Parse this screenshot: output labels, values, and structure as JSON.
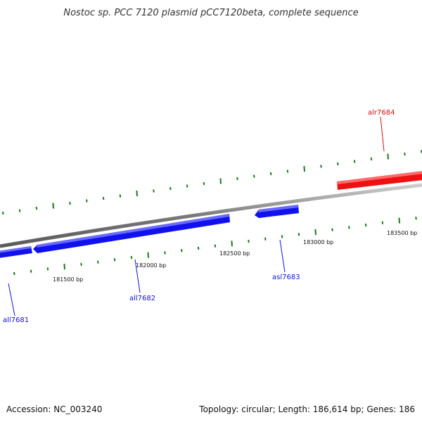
{
  "title": "Nostoc sp. PCC 7120 plasmid pCC7120beta, complete sequence",
  "footer": {
    "accession": "Accession: NC_003240",
    "summary": "Topology: circular; Length: 186,614 bp; Genes: 186"
  },
  "colors": {
    "backbone": "#8a8a8a",
    "ticks": "#1a7a1a",
    "forward_gene": "#ee1111",
    "reverse_gene": "#1111ee"
  },
  "ticks": {
    "major_labels": [
      "181500 bp",
      "182000 bp",
      "182500 bp",
      "183000 bp",
      "183500 bp"
    ]
  },
  "genes": [
    {
      "name": "all7681",
      "strand": "reverse"
    },
    {
      "name": "all7682",
      "strand": "reverse"
    },
    {
      "name": "asl7683",
      "strand": "reverse"
    },
    {
      "name": "alr7684",
      "strand": "forward"
    }
  ]
}
